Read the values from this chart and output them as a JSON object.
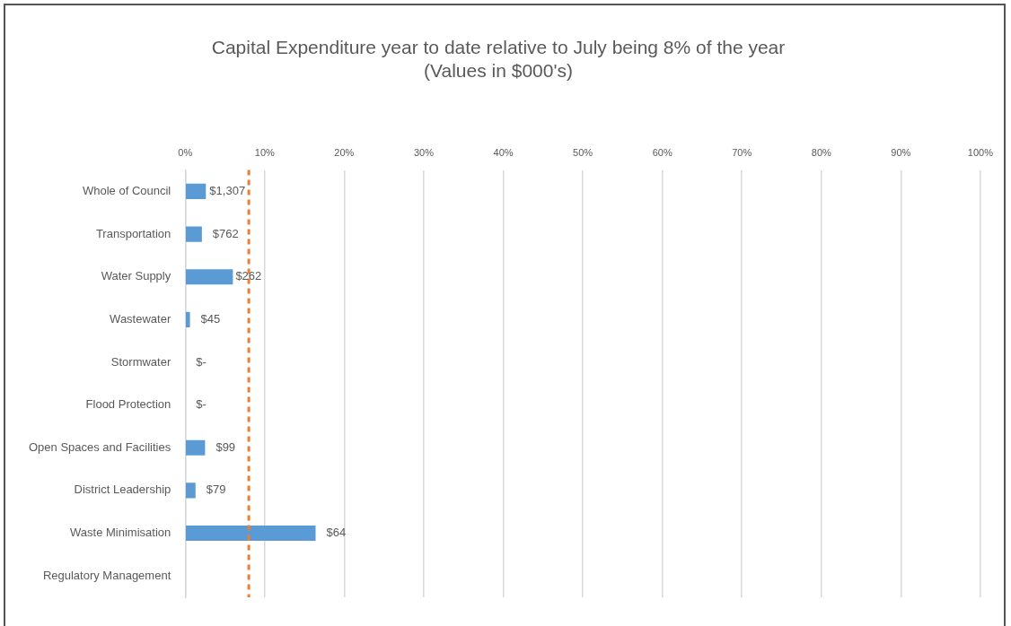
{
  "chart_data": {
    "type": "bar",
    "orientation": "horizontal",
    "title": "Capital Expenditure year to date relative to July being 8% of the year",
    "subtitle": "(Values in $000's)",
    "categories": [
      "Whole of Council",
      "Transportation",
      "Water Supply",
      "Wastewater",
      "Stormwater",
      "Flood Protection",
      "Open Spaces and Facilities",
      "District Leadership",
      "Waste Minimisation",
      "Regulatory Management"
    ],
    "values": [
      2.6,
      2.1,
      6,
      0.6,
      0,
      0,
      2.5,
      1.3,
      16.4,
      null
    ],
    "annotations": [
      {
        "text": "$1,307",
        "x": 2.6,
        "y": "Whole of Council"
      },
      {
        "text": "$762",
        "x": 2.1,
        "y": "Transportation"
      },
      {
        "text": "$262",
        "x": 6,
        "y": "Water Supply"
      },
      {
        "text": "$45",
        "x": 0.6,
        "y": "Wastewater"
      },
      {
        "text": "$-",
        "x": 0,
        "y": "Stormwater"
      },
      {
        "text": "$-",
        "x": 0,
        "y": "Flood Protection"
      },
      {
        "text": "$99",
        "x": 2.5,
        "y": "Open Spaces and Facilities"
      },
      {
        "text": "$79",
        "x": 1.3,
        "y": "District Leadership"
      },
      {
        "text": "$64",
        "x": 16.4,
        "y": "Waste Minimisation"
      }
    ],
    "color": "#5b9bd5",
    "xlim": [
      0,
      100
    ],
    "xticks": [
      {
        "value": 0,
        "label": "0%"
      },
      {
        "value": 10,
        "label": "10%"
      },
      {
        "value": 20,
        "label": "20%"
      },
      {
        "value": 30,
        "label": "30%"
      },
      {
        "value": 40,
        "label": "40%"
      },
      {
        "value": 50,
        "label": "50%"
      },
      {
        "value": 60,
        "label": "60%"
      },
      {
        "value": 70,
        "label": "70%"
      },
      {
        "value": 80,
        "label": "80%"
      },
      {
        "value": 90,
        "label": "90%"
      },
      {
        "value": 100,
        "label": "100%"
      }
    ],
    "grid": "x",
    "legend": false,
    "ref_lines": [
      {
        "axis": "x",
        "value": 8,
        "color": "#ed7d31",
        "line_style": "dashed"
      }
    ]
  }
}
